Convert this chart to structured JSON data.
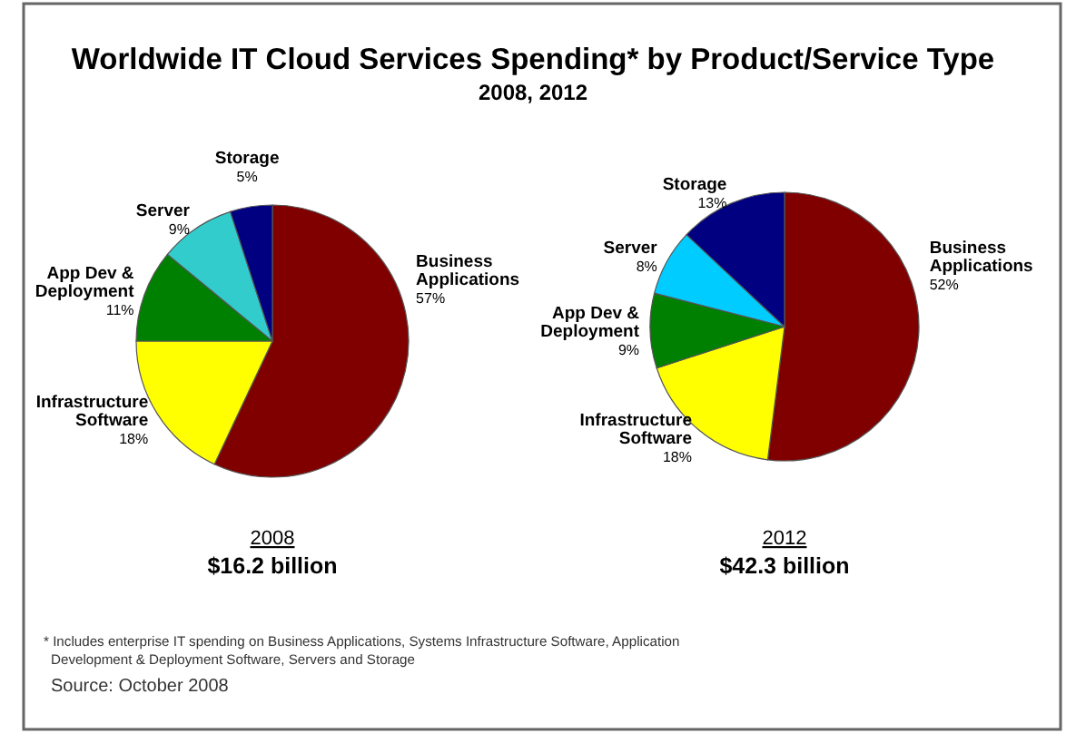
{
  "chart_data": [
    {
      "type": "other",
      "title": "Worldwide IT Cloud Services Spending* by Product/Service Type",
      "subtitle": "2008, 2012",
      "annotations": [
        "* Includes enterprise IT spending on Business Applications, Systems Infrastructure Software, Application Development & Deployment Software, Servers and Storage",
        "Source: October 2008"
      ]
    },
    {
      "type": "pie",
      "title": "2008",
      "subtitle": "$16.2 billion",
      "categories": [
        "Business Applications",
        "Infrastructure Software",
        "App Dev & Deployment",
        "Server",
        "Storage"
      ],
      "values": [
        57,
        18,
        11,
        9,
        5
      ],
      "value_labels": [
        "57%",
        "18%",
        "11%",
        "9%",
        "5%"
      ],
      "colors": [
        "#800000",
        "#ffff00",
        "#008000",
        "#33cccc",
        "#000080"
      ]
    },
    {
      "type": "pie",
      "title": "2012",
      "subtitle": "$42.3 billion",
      "categories": [
        "Business Applications",
        "Infrastructure Software",
        "App Dev & Deployment",
        "Server",
        "Storage"
      ],
      "values": [
        52,
        18,
        9,
        8,
        13
      ],
      "value_labels": [
        "52%",
        "18%",
        "9%",
        "8%",
        "13%"
      ],
      "colors": [
        "#800000",
        "#ffff00",
        "#008000",
        "#00ccff",
        "#000080"
      ]
    }
  ]
}
